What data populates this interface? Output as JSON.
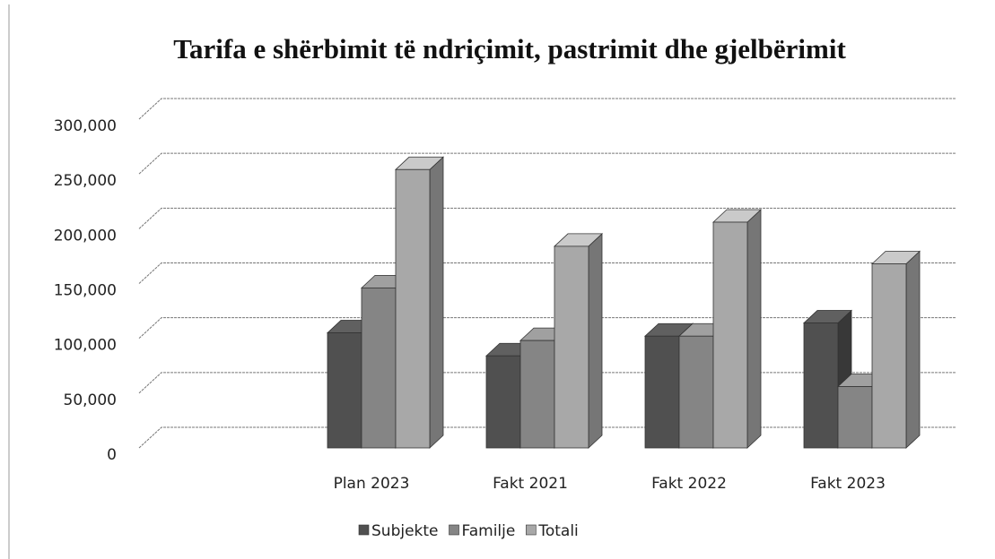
{
  "chart_data": {
    "type": "bar3d",
    "title": "Tarifa e shërbimit të ndriçimit, pastrimit dhe gjelbërimit",
    "categories": [
      null,
      "Plan 2023",
      "Fakt 2021",
      "Fakt 2022",
      "Fakt 2023"
    ],
    "series": [
      {
        "name": "Subjekte",
        "color": "#505050",
        "values": [
          null,
          105000,
          84000,
          102000,
          114000
        ]
      },
      {
        "name": "Familje",
        "color": "#858585",
        "values": [
          null,
          146000,
          98000,
          102000,
          56000
        ]
      },
      {
        "name": "Totali",
        "color": "#a8a8a8",
        "values": [
          null,
          254000,
          184000,
          206000,
          168000
        ]
      }
    ],
    "ylim": [
      0,
      300000
    ],
    "yticks": [
      0,
      {
        "value": 50000,
        "label": "50,000"
      },
      {
        "value": 100000,
        "label": "100,000"
      },
      {
        "value": 150000,
        "label": "150,000"
      },
      {
        "value": 200000,
        "label": "200,000"
      },
      {
        "value": 250000,
        "label": "250,000"
      },
      {
        "value": 300000,
        "label": "300,000"
      }
    ],
    "grid": true,
    "legend": "bottom"
  }
}
